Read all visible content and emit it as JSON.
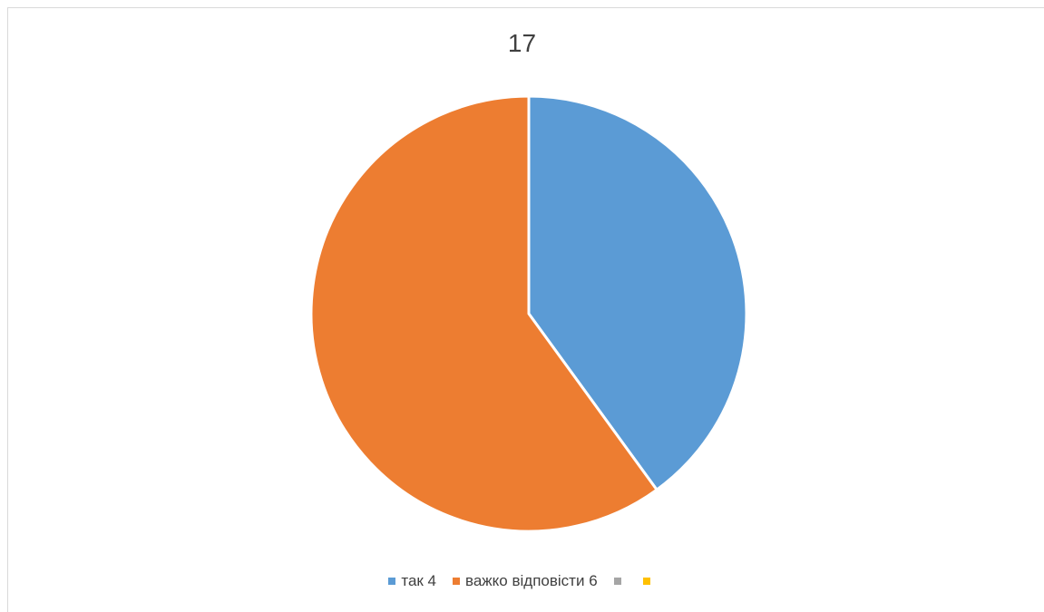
{
  "chart_data": {
    "type": "pie",
    "title": "17",
    "categories": [
      "так 4",
      "важко відповісти 6",
      "",
      ""
    ],
    "values": [
      4,
      6,
      0,
      0
    ],
    "colors": [
      "#5b9bd5",
      "#ed7d31",
      "#a5a5a5",
      "#ffc000"
    ],
    "legend_position": "bottom"
  }
}
